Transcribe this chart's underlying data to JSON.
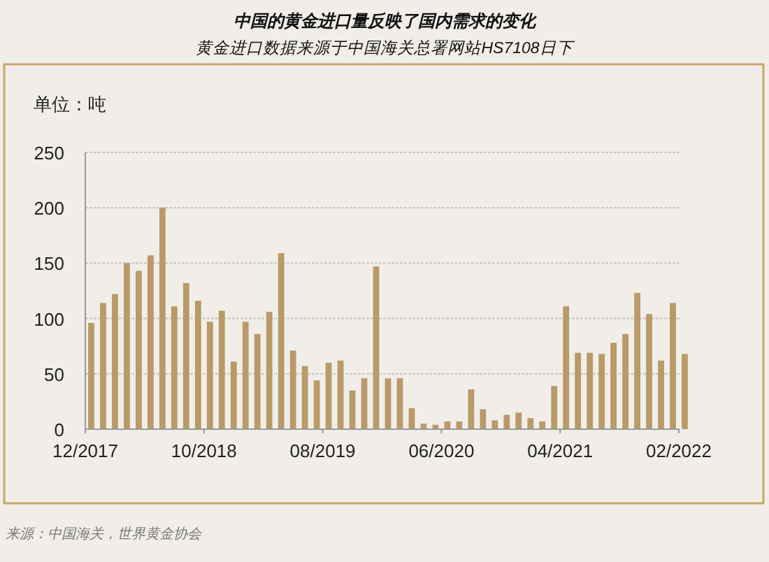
{
  "chart_data": {
    "type": "bar",
    "title": "中国的黄金进口量反映了国内需求的变化",
    "subtitle": "黄金进口数据来源于中国海关总署网站HS7108日下",
    "ylabel": "单位：吨",
    "categories": [
      "12/2017",
      null,
      null,
      null,
      null,
      null,
      null,
      null,
      null,
      null,
      "10/2018",
      null,
      null,
      null,
      null,
      null,
      null,
      null,
      null,
      null,
      "08/2019",
      null,
      null,
      null,
      null,
      null,
      null,
      null,
      null,
      null,
      "06/2020",
      null,
      null,
      null,
      null,
      null,
      null,
      null,
      null,
      null,
      "04/2021",
      null,
      null,
      null,
      null,
      null,
      null,
      null,
      null,
      null,
      "02/2022"
    ],
    "values": [
      96,
      114,
      122,
      150,
      143,
      157,
      200,
      111,
      132,
      116,
      97,
      107,
      61,
      97,
      86,
      106,
      159,
      71,
      57,
      44,
      60,
      62,
      35,
      46,
      147,
      46,
      46,
      19,
      5,
      4,
      7,
      7,
      36,
      18,
      8,
      13,
      15,
      10,
      7,
      39,
      111,
      69,
      69,
      68,
      78,
      86,
      123,
      104,
      62,
      114,
      68
    ],
    "color": "#b99a68",
    "ylim": [
      0,
      250
    ],
    "yticks": [
      0,
      50,
      100,
      150,
      200,
      250
    ],
    "grid": "y",
    "annotations": [
      "来源：中国海关，世界黄金协会"
    ]
  }
}
